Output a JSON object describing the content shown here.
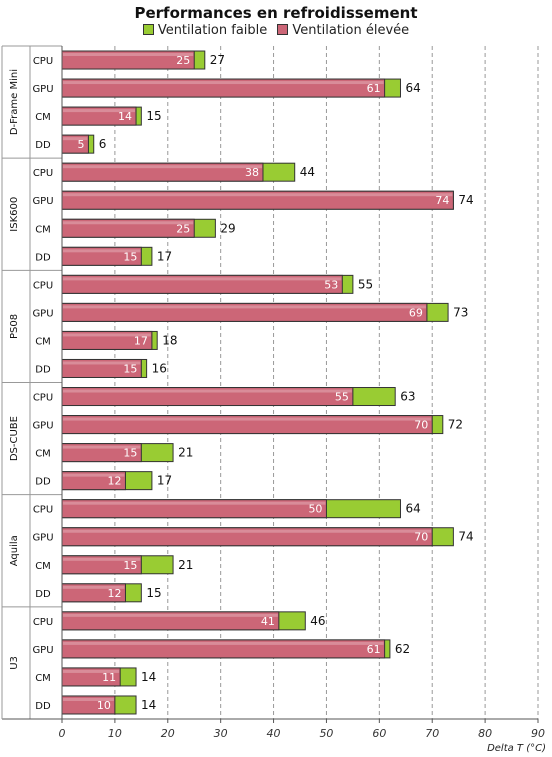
{
  "chart_data": {
    "type": "bar",
    "orientation": "horizontal",
    "stacked": "overlay",
    "title": "Performances en refroidissement",
    "xlabel": "Delta T (°C)",
    "xlim": [
      0,
      90
    ],
    "xticks": [
      0,
      10,
      20,
      30,
      40,
      50,
      60,
      70,
      80,
      90
    ],
    "grid": "dashed vertical",
    "legend_position": "top",
    "colors": {
      "faible": "#99cc33",
      "elevee": "#cc6677",
      "frame": "#333333"
    },
    "series": [
      {
        "name": "Ventilation faible",
        "key": "faible"
      },
      {
        "name": "Ventilation élevée",
        "key": "elevee"
      }
    ],
    "groups": [
      {
        "name": "D-Frame Mini",
        "rows": [
          {
            "label": "CPU",
            "elevee": 25,
            "faible": 27
          },
          {
            "label": "GPU",
            "elevee": 61,
            "faible": 64
          },
          {
            "label": "CM",
            "elevee": 14,
            "faible": 15
          },
          {
            "label": "DD",
            "elevee": 5,
            "faible": 6
          }
        ]
      },
      {
        "name": "ISK600",
        "rows": [
          {
            "label": "CPU",
            "elevee": 38,
            "faible": 44
          },
          {
            "label": "GPU",
            "elevee": 74,
            "faible": 74
          },
          {
            "label": "CM",
            "elevee": 25,
            "faible": 29
          },
          {
            "label": "DD",
            "elevee": 15,
            "faible": 17
          }
        ]
      },
      {
        "name": "PS08",
        "rows": [
          {
            "label": "CPU",
            "elevee": 53,
            "faible": 55
          },
          {
            "label": "GPU",
            "elevee": 69,
            "faible": 73
          },
          {
            "label": "CM",
            "elevee": 17,
            "faible": 18
          },
          {
            "label": "DD",
            "elevee": 15,
            "faible": 16
          }
        ]
      },
      {
        "name": "DS-CUBE",
        "rows": [
          {
            "label": "CPU",
            "elevee": 55,
            "faible": 63
          },
          {
            "label": "GPU",
            "elevee": 70,
            "faible": 72
          },
          {
            "label": "CM",
            "elevee": 15,
            "faible": 21
          },
          {
            "label": "DD",
            "elevee": 12,
            "faible": 17
          }
        ]
      },
      {
        "name": "Aquila",
        "rows": [
          {
            "label": "CPU",
            "elevee": 50,
            "faible": 64
          },
          {
            "label": "GPU",
            "elevee": 70,
            "faible": 74
          },
          {
            "label": "CM",
            "elevee": 15,
            "faible": 21
          },
          {
            "label": "DD",
            "elevee": 12,
            "faible": 15
          }
        ]
      },
      {
        "name": "U3",
        "rows": [
          {
            "label": "CPU",
            "elevee": 41,
            "faible": 46
          },
          {
            "label": "GPU",
            "elevee": 61,
            "faible": 62
          },
          {
            "label": "CM",
            "elevee": 11,
            "faible": 14
          },
          {
            "label": "DD",
            "elevee": 10,
            "faible": 14
          }
        ]
      }
    ]
  }
}
